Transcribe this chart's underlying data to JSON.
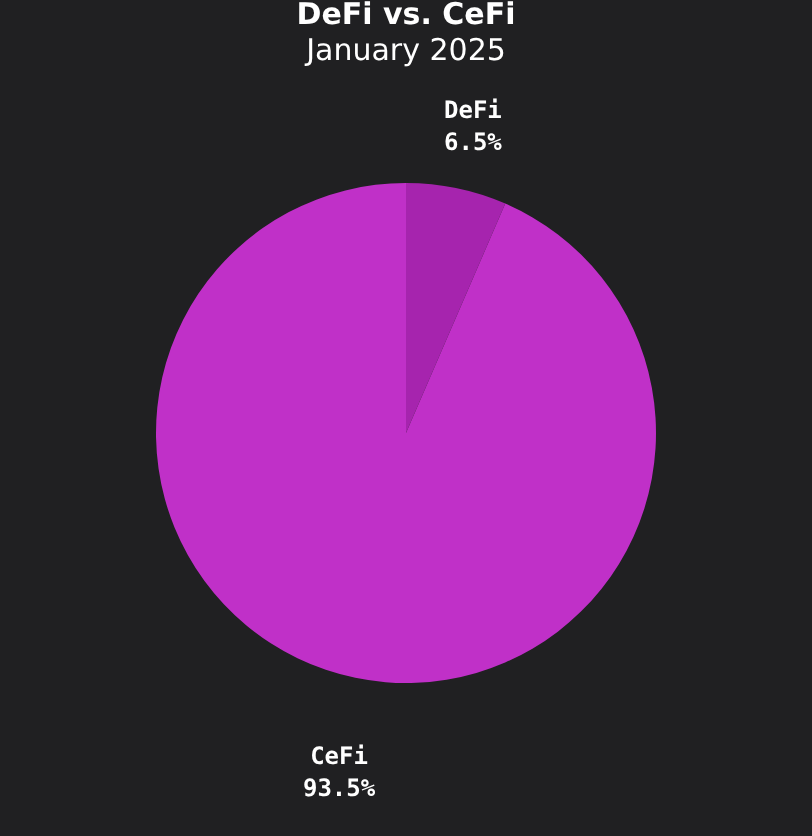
{
  "chart_data": {
    "type": "pie",
    "title": "DeFi vs. CeFi",
    "subtitle": "January 2025",
    "categories": [
      "DeFi",
      "CeFi"
    ],
    "values": [
      6.5,
      93.5
    ],
    "colors": [
      "#a624ae",
      "#c030c8"
    ],
    "value_labels": [
      "6.5%",
      "93.5%"
    ],
    "legend": false
  }
}
